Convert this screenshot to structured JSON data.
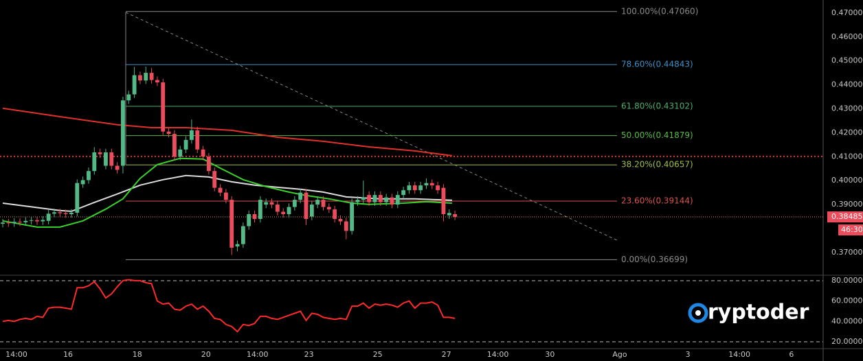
{
  "chart_data": [
    {
      "type": "candlestick",
      "x": [
        0,
        1,
        2,
        3,
        4,
        5,
        6,
        7,
        8,
        9,
        10,
        11,
        12,
        13,
        14,
        15,
        16,
        17,
        18,
        19,
        20,
        21,
        22,
        23,
        24,
        25,
        26,
        27,
        28,
        29,
        30,
        31,
        32,
        33,
        34,
        35,
        36,
        37,
        38,
        39,
        40,
        41,
        42,
        43,
        44,
        45,
        46,
        47,
        48,
        49,
        50,
        51,
        52,
        53,
        54,
        55,
        56,
        57,
        58,
        59,
        60,
        61,
        62,
        63,
        64,
        65,
        66,
        67,
        68,
        69,
        70,
        71,
        72,
        73,
        74,
        75,
        76,
        77,
        78,
        79
      ],
      "open": [
        0.382,
        0.3825,
        0.3822,
        0.3828,
        0.3826,
        0.3832,
        0.3835,
        0.383,
        0.3832,
        0.3862,
        0.3868,
        0.3864,
        0.386,
        0.3866,
        0.3985,
        0.4002,
        0.404,
        0.4118,
        0.4062,
        0.4118,
        0.4062,
        0.4062,
        0.4335,
        0.436,
        0.444,
        0.4418,
        0.445,
        0.442,
        0.441,
        0.4205,
        0.4195,
        0.41,
        0.413,
        0.417,
        0.421,
        0.413,
        0.41,
        0.404,
        0.397,
        0.395,
        0.392,
        0.3725,
        0.3735,
        0.381,
        0.386,
        0.384,
        0.39,
        0.391,
        0.39,
        0.387,
        0.386,
        0.389,
        0.392,
        0.395,
        0.385,
        0.39,
        0.392,
        0.389,
        0.388,
        0.384,
        0.383,
        0.379,
        0.391,
        0.392,
        0.394,
        0.391,
        0.394,
        0.391,
        0.393,
        0.39,
        0.394,
        0.396,
        0.398,
        0.396,
        0.398,
        0.399,
        0.398,
        0.397,
        0.3855,
        0.386
      ],
      "high": [
        0.384,
        0.384,
        0.3843,
        0.3843,
        0.3847,
        0.385,
        0.385,
        0.3851,
        0.3877,
        0.3883,
        0.3883,
        0.3879,
        0.3881,
        0.4005,
        0.4017,
        0.4055,
        0.414,
        0.4133,
        0.4133,
        0.4133,
        0.4077,
        0.435,
        0.4375,
        0.4475,
        0.4455,
        0.4476,
        0.447,
        0.4435,
        0.4425,
        0.422,
        0.421,
        0.4145,
        0.4185,
        0.4255,
        0.4225,
        0.4145,
        0.4115,
        0.4055,
        0.3985,
        0.3965,
        0.3935,
        0.375,
        0.3825,
        0.3875,
        0.3875,
        0.3935,
        0.3925,
        0.3925,
        0.3915,
        0.3885,
        0.3905,
        0.3935,
        0.3965,
        0.3965,
        0.3915,
        0.3935,
        0.3935,
        0.3905,
        0.3895,
        0.3855,
        0.3845,
        0.3925,
        0.3935,
        0.4,
        0.3955,
        0.3955,
        0.3955,
        0.3945,
        0.3945,
        0.3955,
        0.3975,
        0.3995,
        0.3995,
        0.3995,
        0.401,
        0.4005,
        0.3995,
        0.3985,
        0.388,
        0.3875
      ],
      "low": [
        0.3805,
        0.3807,
        0.3807,
        0.3811,
        0.3811,
        0.3817,
        0.3815,
        0.3815,
        0.3817,
        0.3847,
        0.3849,
        0.3845,
        0.3845,
        0.3851,
        0.397,
        0.3987,
        0.4025,
        0.4095,
        0.4047,
        0.4047,
        0.403,
        0.403,
        0.432,
        0.4345,
        0.4403,
        0.4403,
        0.4405,
        0.4395,
        0.419,
        0.418,
        0.4085,
        0.4085,
        0.4115,
        0.4155,
        0.4115,
        0.4085,
        0.4025,
        0.3955,
        0.3935,
        0.3905,
        0.369,
        0.3705,
        0.372,
        0.3795,
        0.3825,
        0.3825,
        0.3885,
        0.3885,
        0.3855,
        0.3845,
        0.3845,
        0.3875,
        0.3905,
        0.3815,
        0.3835,
        0.3885,
        0.3875,
        0.3865,
        0.3825,
        0.3815,
        0.3755,
        0.3775,
        0.3895,
        0.3905,
        0.3895,
        0.3895,
        0.3895,
        0.3895,
        0.3885,
        0.3885,
        0.3925,
        0.3945,
        0.3945,
        0.3945,
        0.3965,
        0.3965,
        0.3945,
        0.383,
        0.384,
        0.3835
      ],
      "close": [
        0.3825,
        0.3822,
        0.3828,
        0.3826,
        0.3832,
        0.3835,
        0.383,
        0.3836,
        0.3862,
        0.3868,
        0.3864,
        0.386,
        0.3866,
        0.399,
        0.4002,
        0.404,
        0.4118,
        0.411,
        0.4118,
        0.4062,
        0.4045,
        0.4335,
        0.436,
        0.444,
        0.4418,
        0.445,
        0.442,
        0.441,
        0.4205,
        0.4195,
        0.41,
        0.413,
        0.417,
        0.421,
        0.413,
        0.41,
        0.404,
        0.397,
        0.395,
        0.392,
        0.372,
        0.3735,
        0.381,
        0.386,
        0.384,
        0.392,
        0.391,
        0.39,
        0.387,
        0.386,
        0.389,
        0.392,
        0.395,
        0.384,
        0.39,
        0.392,
        0.389,
        0.388,
        0.384,
        0.383,
        0.379,
        0.391,
        0.392,
        0.393,
        0.391,
        0.394,
        0.391,
        0.393,
        0.39,
        0.394,
        0.396,
        0.398,
        0.396,
        0.398,
        0.399,
        0.398,
        0.396,
        0.386,
        0.3865,
        0.3849
      ],
      "up_color": "#53b987",
      "down_color": "#eb4d5c",
      "overlays": [
        {
          "color": "#e0312b",
          "x": [
            0,
            10,
            20,
            26,
            32,
            40,
            48,
            56,
            64,
            72,
            78.5
          ],
          "values": [
            0.4302,
            0.4267,
            0.4233,
            0.4221,
            0.4221,
            0.421,
            0.4181,
            0.4164,
            0.4141,
            0.4124,
            0.4104
          ]
        },
        {
          "color": "#dcdcdc",
          "x": [
            0,
            10,
            12,
            16,
            20,
            24,
            28,
            32,
            36,
            40,
            44,
            48,
            52,
            56,
            60,
            66,
            72,
            78.5
          ],
          "values": [
            0.3906,
            0.3875,
            0.3872,
            0.3909,
            0.3944,
            0.3981,
            0.4004,
            0.4021,
            0.4015,
            0.3995,
            0.3981,
            0.3972,
            0.3964,
            0.3952,
            0.3932,
            0.3924,
            0.3924,
            0.3918
          ]
        },
        {
          "color": "#3ad12c",
          "x": [
            0,
            6,
            10,
            14,
            18,
            21,
            24,
            27,
            31,
            35,
            38,
            42,
            46,
            50,
            53,
            57,
            61,
            64,
            70,
            74,
            78.5
          ],
          "values": [
            0.3832,
            0.3806,
            0.3806,
            0.3832,
            0.3881,
            0.3924,
            0.4009,
            0.4067,
            0.4093,
            0.409,
            0.4052,
            0.4004,
            0.3975,
            0.3952,
            0.3938,
            0.3924,
            0.3906,
            0.3901,
            0.3906,
            0.3912,
            0.3906
          ]
        }
      ],
      "hline": {
        "value": 0.4101,
        "color": "#e0312b"
      },
      "last_price": {
        "value": 0.38485,
        "label": "0.38485",
        "color": "#eb4d5c"
      },
      "countdown": "46:30",
      "fib": [
        {
          "value": 0.4706,
          "label": "100.00%(0.47060)",
          "color": "#8c8c8c"
        },
        {
          "value": 0.44843,
          "label": "78.60%(0.44843)",
          "color": "#3d8fc6"
        },
        {
          "value": 0.43102,
          "label": "61.80%(0.43102)",
          "color": "#4caf6a"
        },
        {
          "value": 0.41879,
          "label": "50.00%(0.41879)",
          "color": "#58b947"
        },
        {
          "value": 0.40657,
          "label": "38.20%(0.40657)",
          "color": "#9fbf4a"
        },
        {
          "value": 0.39144,
          "label": "23.60%(0.39144)",
          "color": "#d9534f"
        },
        {
          "value": 0.36699,
          "label": "0.00%(0.36699)",
          "color": "#8c8c8c"
        }
      ],
      "xlim": [
        -0.48,
        143.33
      ],
      "ylim": [
        0.3608,
        0.4754
      ],
      "yticks": [
        {
          "value": 0.47,
          "label": "0.47000"
        },
        {
          "value": 0.46,
          "label": "0.46000"
        },
        {
          "value": 0.45,
          "label": "0.45000"
        },
        {
          "value": 0.44,
          "label": "0.44000"
        },
        {
          "value": 0.43,
          "label": "0.43000"
        },
        {
          "value": 0.42,
          "label": "0.42000"
        },
        {
          "value": 0.41,
          "label": "0.41000"
        },
        {
          "value": 0.4,
          "label": "0.40000"
        },
        {
          "value": 0.39,
          "label": "0.39000"
        },
        {
          "value": 0.37,
          "label": "0.37000"
        }
      ]
    },
    {
      "type": "line",
      "color": "#ff2b2b",
      "x": [
        0,
        1,
        2,
        3,
        4,
        5,
        6,
        7,
        8,
        9,
        10,
        11,
        12,
        13,
        14,
        15,
        16,
        17,
        18,
        19,
        20,
        21,
        22,
        23,
        24,
        25,
        26,
        27,
        28,
        29,
        30,
        31,
        32,
        33,
        34,
        35,
        36,
        37,
        38,
        39,
        40,
        41,
        42,
        43,
        44,
        45,
        46,
        47,
        48,
        49,
        50,
        51,
        52,
        53,
        54,
        55,
        56,
        57,
        58,
        59,
        60,
        61,
        62,
        63,
        64,
        65,
        66,
        67,
        68,
        69,
        70,
        71,
        72,
        73,
        74,
        75,
        76,
        77,
        78,
        79
      ],
      "values": [
        40,
        41,
        40,
        42,
        43,
        42,
        45,
        44,
        53,
        54,
        54,
        53,
        52,
        73,
        73,
        75,
        79,
        72,
        63,
        67,
        74,
        80,
        81,
        80,
        80,
        78,
        77,
        60,
        57,
        58,
        52,
        51,
        55,
        57,
        52,
        55,
        50,
        43,
        42,
        37,
        35,
        30,
        37,
        36,
        38,
        45,
        45,
        43,
        42,
        44,
        46,
        48,
        50,
        41,
        48,
        47,
        44,
        43,
        42,
        43,
        42,
        55,
        55,
        58,
        53,
        57,
        56,
        57,
        56,
        54,
        58,
        60,
        53,
        58,
        58,
        59,
        56,
        44,
        44,
        43
      ],
      "levels": [
        80,
        20
      ],
      "xlim": [
        -0.48,
        143.33
      ],
      "ylim": [
        13.3,
        84
      ],
      "yticks": [
        {
          "value": 80,
          "label": "80.0000"
        },
        {
          "value": 60,
          "label": "60.0000"
        },
        {
          "value": 40,
          "label": "40.0000"
        },
        {
          "value": 20,
          "label": "20.0000"
        }
      ],
      "xticks": [
        {
          "value": 2.4,
          "label": "14:00"
        },
        {
          "value": 11.4,
          "label": "16"
        },
        {
          "value": 23.5,
          "label": "18"
        },
        {
          "value": 35.5,
          "label": "20"
        },
        {
          "value": 44.5,
          "label": "14:00"
        },
        {
          "value": 53.5,
          "label": "23"
        },
        {
          "value": 65.5,
          "label": "25"
        },
        {
          "value": 77.5,
          "label": "27"
        },
        {
          "value": 86.5,
          "label": "14:00"
        },
        {
          "value": 95.6,
          "label": "30"
        },
        {
          "value": 107.8,
          "label": "Ago"
        },
        {
          "value": 119.7,
          "label": "3"
        },
        {
          "value": 128.7,
          "label": "14:00"
        },
        {
          "value": 137.8,
          "label": "6"
        }
      ]
    }
  ],
  "logo": "ryptoder"
}
